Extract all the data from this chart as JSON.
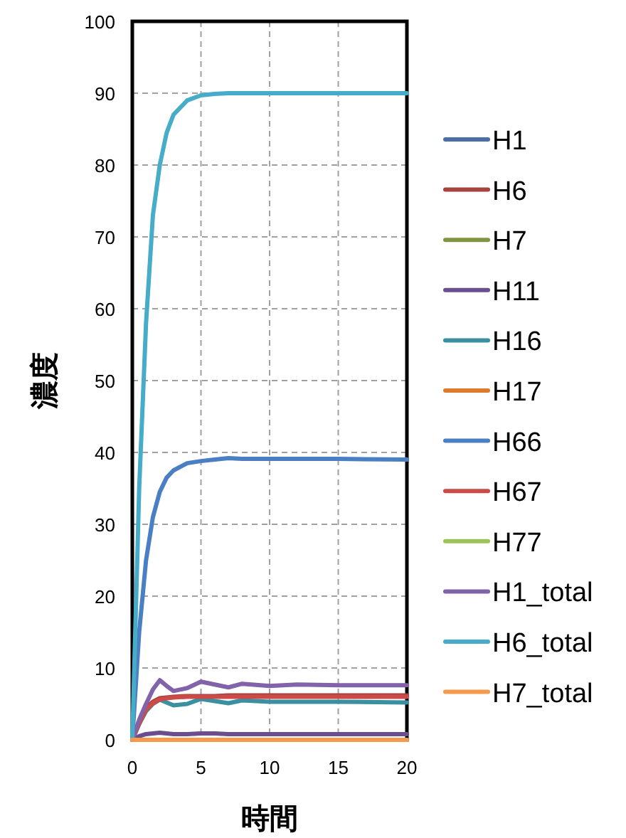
{
  "chart_data": {
    "type": "line",
    "xlabel": "時間",
    "ylabel": "濃度",
    "xlim": [
      0,
      20
    ],
    "ylim": [
      0,
      100
    ],
    "xticks": [
      0,
      5,
      10,
      15,
      20
    ],
    "yticks": [
      0,
      10,
      20,
      30,
      40,
      50,
      60,
      70,
      80,
      90,
      100
    ],
    "grid": true,
    "legend": "right",
    "marker": "none",
    "line_style": "solid",
    "x": [
      0,
      0.5,
      1,
      1.5,
      2,
      2.5,
      3,
      4,
      5,
      6,
      7,
      8,
      10,
      12,
      15,
      20
    ],
    "series": [
      {
        "name": "H1",
        "color": "#4a6fa5",
        "values": [
          null,
          null,
          null,
          null,
          null,
          null,
          null,
          null,
          null,
          null,
          null,
          null,
          null,
          null,
          null,
          null
        ]
      },
      {
        "name": "H6",
        "color": "#a5433f",
        "values": [
          0,
          2.5,
          4.5,
          5.3,
          5.8,
          5.9,
          6,
          6.1,
          6.1,
          6.1,
          6.2,
          6.2,
          6.2,
          6.2,
          6.2,
          6.2
        ]
      },
      {
        "name": "H7",
        "color": "#7f9540",
        "values": [
          null,
          null,
          null,
          null,
          null,
          null,
          null,
          null,
          null,
          null,
          null,
          null,
          null,
          null,
          null,
          null
        ]
      },
      {
        "name": "H11",
        "color": "#6a4e8e",
        "values": [
          0,
          0.5,
          0.8,
          0.9,
          1,
          0.9,
          0.8,
          0.8,
          0.9,
          0.9,
          0.8,
          0.8,
          0.8,
          0.8,
          0.8,
          0.8
        ]
      },
      {
        "name": "H16",
        "color": "#3a8fa0",
        "values": [
          0,
          2.2,
          4,
          5,
          5.6,
          5.2,
          4.8,
          5,
          5.7,
          5.4,
          5.1,
          5.5,
          5.3,
          5.3,
          5.3,
          5.2
        ]
      },
      {
        "name": "H17",
        "color": "#e07b2e",
        "values": [
          null,
          null,
          null,
          null,
          null,
          null,
          null,
          null,
          null,
          null,
          null,
          null,
          null,
          null,
          null,
          null
        ]
      },
      {
        "name": "H66",
        "color": "#4a7fc4",
        "values": [
          0,
          15,
          25,
          31,
          34.5,
          36.5,
          37.5,
          38.5,
          38.8,
          39,
          39.2,
          39.1,
          39.1,
          39.1,
          39.1,
          39
        ]
      },
      {
        "name": "H67",
        "color": "#cc4a47",
        "values": [
          0,
          2.3,
          4.2,
          5.1,
          5.6,
          5.8,
          5.9,
          6,
          6,
          6,
          6,
          6,
          6,
          6,
          6,
          6
        ]
      },
      {
        "name": "H77",
        "color": "#9dc25a",
        "values": [
          null,
          null,
          null,
          null,
          null,
          null,
          null,
          null,
          null,
          null,
          null,
          null,
          null,
          null,
          null,
          null
        ]
      },
      {
        "name": "H1_total",
        "color": "#8262a8",
        "values": [
          0,
          2.8,
          5,
          7,
          8.3,
          7.5,
          6.8,
          7.2,
          8.1,
          7.7,
          7.3,
          7.8,
          7.5,
          7.7,
          7.6,
          7.6
        ]
      },
      {
        "name": "H6_total",
        "color": "#46acc8",
        "values": [
          0,
          35,
          58,
          73,
          80,
          84.5,
          87,
          89,
          89.7,
          89.9,
          90,
          90,
          90,
          90,
          90,
          90
        ]
      },
      {
        "name": "H7_total",
        "color": "#f59a4a",
        "values": [
          0,
          0,
          0,
          0,
          0,
          0,
          0,
          0,
          0,
          0,
          0,
          0,
          0,
          0,
          0,
          0
        ]
      }
    ]
  }
}
